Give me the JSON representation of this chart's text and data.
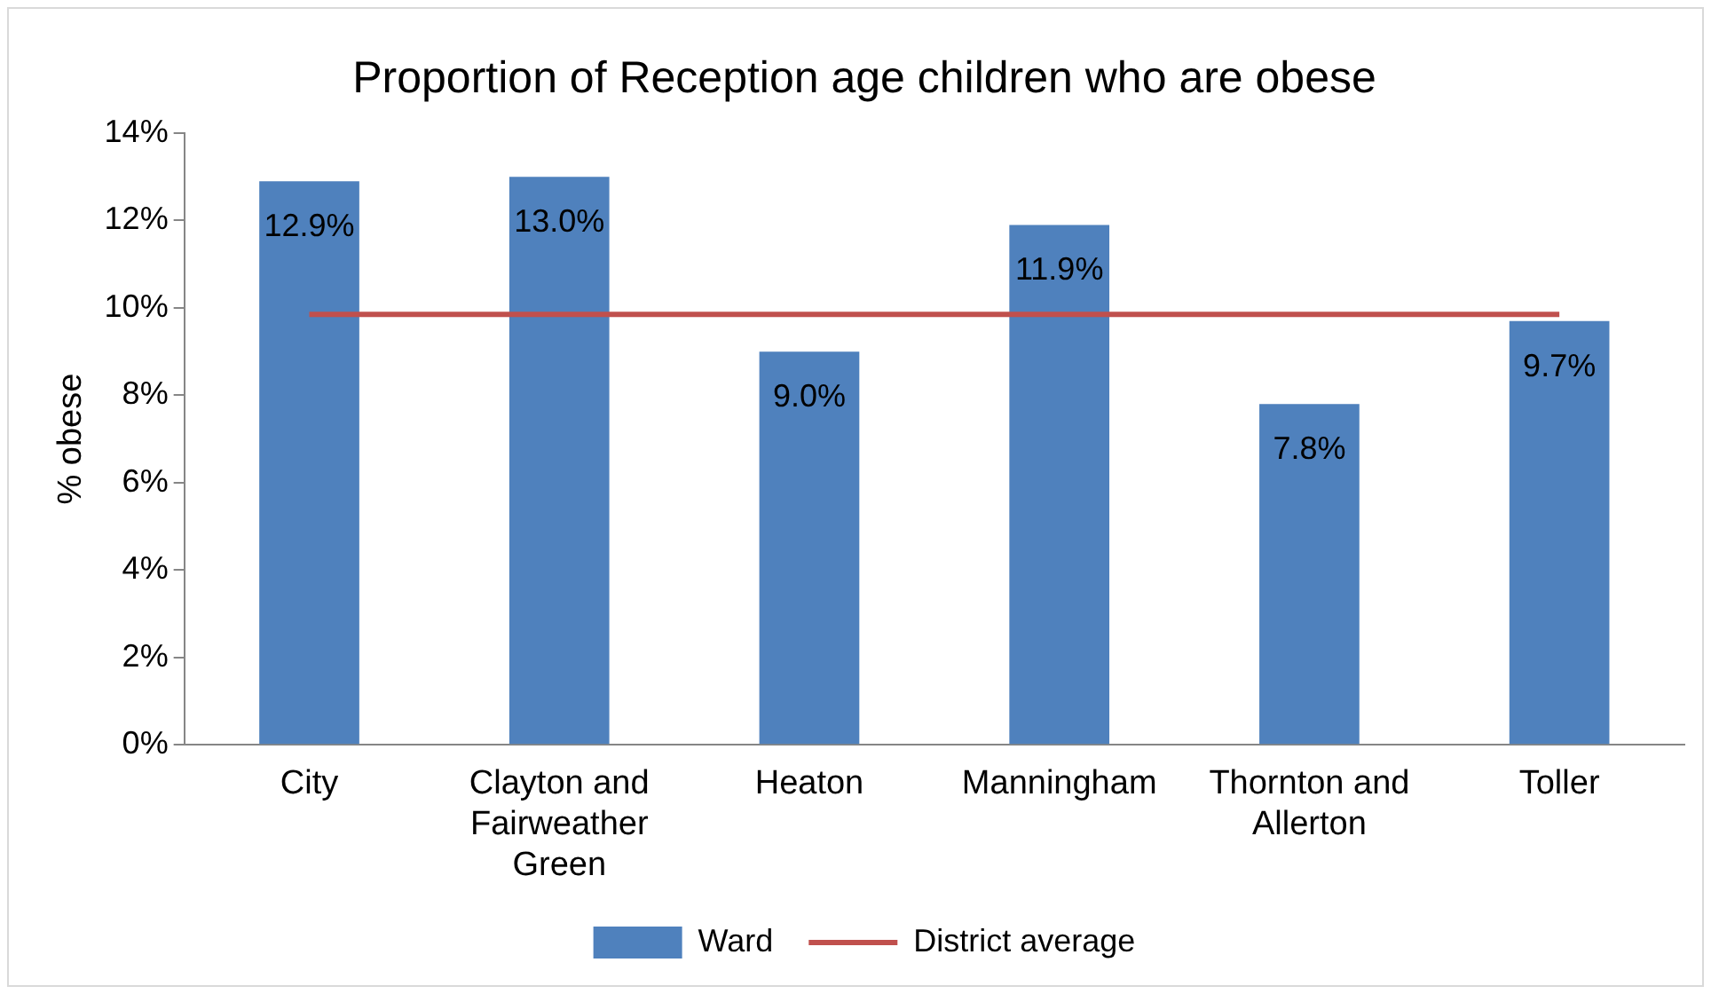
{
  "chart_data": {
    "type": "bar",
    "title": "Proportion of Reception age children who are obese",
    "ylabel": "% obese",
    "categories": [
      "City",
      "Clayton and Fairweather Green",
      "Heaton",
      "Manningham",
      "Thornton and Allerton",
      "Toller"
    ],
    "series": [
      {
        "name": "Ward",
        "color": "#4f81bd",
        "values": [
          12.9,
          13.0,
          9.0,
          11.9,
          7.8,
          9.7
        ],
        "value_labels": [
          "12.9%",
          "13.0%",
          "9.0%",
          "11.9%",
          "7.8%",
          "9.7%"
        ]
      },
      {
        "name": "District average",
        "type": "line",
        "color": "#c0504d",
        "values": [
          9.85,
          9.85,
          9.85,
          9.85,
          9.85,
          9.85
        ]
      }
    ],
    "ylim": [
      0,
      14
    ],
    "yticks": [
      {
        "value": 0,
        "label": "0%"
      },
      {
        "value": 2,
        "label": "2%"
      },
      {
        "value": 4,
        "label": "4%"
      },
      {
        "value": 6,
        "label": "6%"
      },
      {
        "value": 8,
        "label": "8%"
      },
      {
        "value": 10,
        "label": "10%"
      },
      {
        "value": 12,
        "label": "12%"
      },
      {
        "value": 14,
        "label": "14%"
      }
    ],
    "grid": false,
    "legend": "bottom",
    "marker": "none"
  }
}
